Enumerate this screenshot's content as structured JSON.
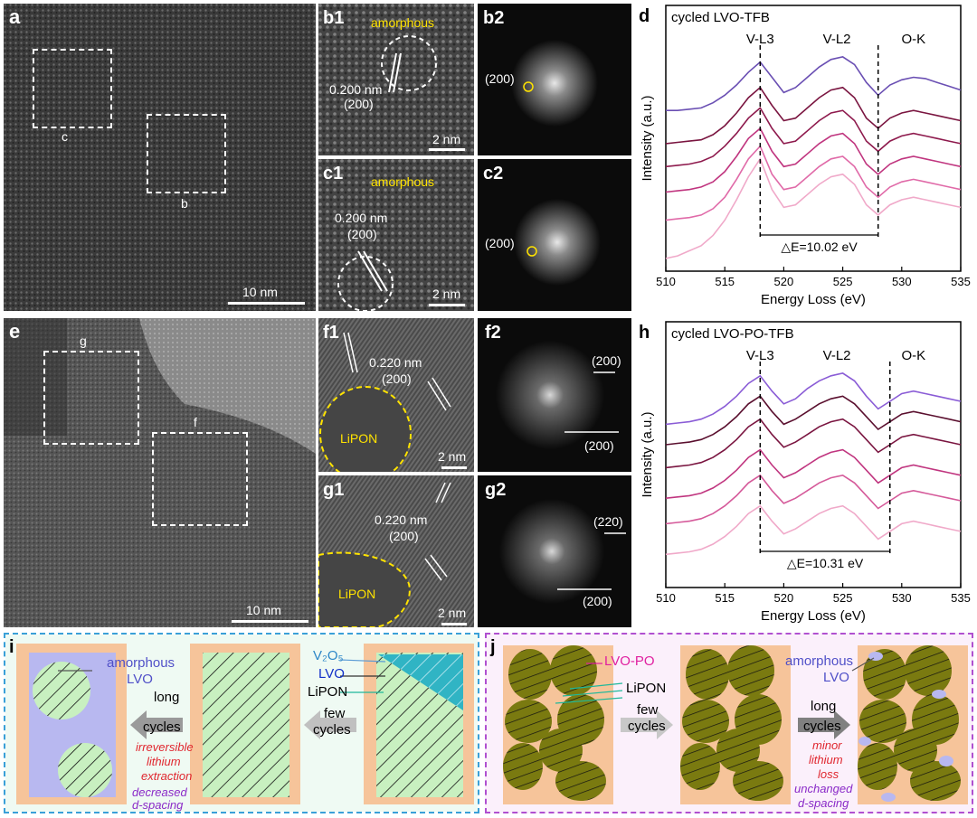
{
  "panels": {
    "a": {
      "label": "a",
      "regions": [
        "c",
        "b"
      ],
      "scale": "10 nm"
    },
    "b1": {
      "label": "b1",
      "phase": "amorphous",
      "d_spacing": "0.200 nm",
      "plane": "(200)",
      "scale": "2 nm"
    },
    "b2": {
      "label": "b2",
      "spot": "(200)"
    },
    "c1": {
      "label": "c1",
      "phase": "amorphous",
      "d_spacing": "0.200 nm",
      "plane": "(200)",
      "scale": "2 nm"
    },
    "c2": {
      "label": "c2",
      "spot": "(200)"
    },
    "e": {
      "label": "e",
      "regions": [
        "g",
        "f"
      ],
      "scale": "10 nm"
    },
    "f1": {
      "label": "f1",
      "d_spacing": "0.220 nm",
      "plane": "(200)",
      "phase": "LiPON",
      "scale": "2 nm"
    },
    "f2": {
      "label": "f2",
      "spots": [
        "(200)",
        "(200)"
      ]
    },
    "g1": {
      "label": "g1",
      "d_spacing": "0.220 nm",
      "plane": "(200)",
      "phase": "LiPON",
      "scale": "2 nm"
    },
    "g2": {
      "label": "g2",
      "spots": [
        "(220)",
        "(200)"
      ]
    }
  },
  "chart_data": [
    {
      "label": "d",
      "type": "line",
      "title": "cycled LVO-TFB",
      "xlabel": "Energy Loss (eV)",
      "ylabel": "Intensity (a.u.)",
      "xlim": [
        510,
        535
      ],
      "xticks": [
        "510",
        "515",
        "520",
        "525",
        "530",
        "535"
      ],
      "peaks": [
        "V-L3",
        "V-L2",
        "O-K"
      ],
      "annotation": "△E=10.02 eV",
      "dashed_lines_x": [
        518,
        528
      ],
      "colors": [
        "#6a4fb3",
        "#7a1540",
        "#8e1a4d",
        "#c0357f",
        "#e06aa8",
        "#f0a9c9"
      ],
      "series": [
        {
          "x": [
            510,
            511,
            512,
            513,
            514,
            515,
            516,
            517,
            518,
            519,
            520,
            521,
            522,
            523,
            524,
            525,
            526,
            527,
            528,
            529,
            530,
            531,
            532,
            533,
            534,
            535
          ],
          "values": [
            6.3,
            6.3,
            6.35,
            6.4,
            6.6,
            6.9,
            7.3,
            7.8,
            8.2,
            7.6,
            7.0,
            7.2,
            7.6,
            8.0,
            8.3,
            8.4,
            8.1,
            7.4,
            6.9,
            7.3,
            7.5,
            7.6,
            7.55,
            7.4,
            7.25,
            7.1
          ]
        },
        {
          "x": [
            510,
            511,
            512,
            513,
            514,
            515,
            516,
            517,
            518,
            519,
            520,
            521,
            522,
            523,
            524,
            525,
            526,
            527,
            528,
            529,
            530,
            531,
            532,
            533,
            534,
            535
          ],
          "values": [
            5.0,
            5.05,
            5.1,
            5.15,
            5.35,
            5.7,
            6.2,
            6.8,
            7.2,
            6.5,
            5.9,
            6.0,
            6.4,
            6.8,
            7.1,
            7.2,
            6.8,
            6.0,
            5.6,
            6.0,
            6.2,
            6.3,
            6.2,
            6.1,
            6.0,
            5.9
          ]
        },
        {
          "x": [
            510,
            511,
            512,
            513,
            514,
            515,
            516,
            517,
            518,
            519,
            520,
            521,
            522,
            523,
            524,
            525,
            526,
            527,
            528,
            529,
            530,
            531,
            532,
            533,
            534,
            535
          ],
          "values": [
            4.1,
            4.15,
            4.2,
            4.3,
            4.5,
            4.9,
            5.4,
            6.0,
            6.4,
            5.6,
            5.0,
            5.1,
            5.5,
            5.9,
            6.2,
            6.3,
            5.9,
            5.1,
            4.7,
            5.1,
            5.3,
            5.4,
            5.3,
            5.2,
            5.1,
            5.0
          ]
        },
        {
          "x": [
            510,
            511,
            512,
            513,
            514,
            515,
            516,
            517,
            518,
            519,
            520,
            521,
            522,
            523,
            524,
            525,
            526,
            527,
            528,
            529,
            530,
            531,
            532,
            533,
            534,
            535
          ],
          "values": [
            3.1,
            3.15,
            3.2,
            3.3,
            3.5,
            3.9,
            4.5,
            5.2,
            5.6,
            4.7,
            4.1,
            4.2,
            4.6,
            5.0,
            5.3,
            5.4,
            5.0,
            4.2,
            3.8,
            4.2,
            4.4,
            4.5,
            4.4,
            4.3,
            4.2,
            4.1
          ]
        },
        {
          "x": [
            510,
            511,
            512,
            513,
            514,
            515,
            516,
            517,
            518,
            519,
            520,
            521,
            522,
            523,
            524,
            525,
            526,
            527,
            528,
            529,
            530,
            531,
            532,
            533,
            534,
            535
          ],
          "values": [
            2.0,
            2.05,
            2.1,
            2.2,
            2.45,
            2.9,
            3.6,
            4.4,
            4.9,
            3.8,
            3.2,
            3.3,
            3.7,
            4.1,
            4.4,
            4.5,
            4.1,
            3.3,
            2.9,
            3.3,
            3.5,
            3.6,
            3.5,
            3.4,
            3.3,
            3.2
          ]
        },
        {
          "x": [
            510,
            511,
            512,
            513,
            514,
            515,
            516,
            517,
            518,
            519,
            520,
            521,
            522,
            523,
            524,
            525,
            526,
            527,
            528,
            529,
            530,
            531,
            532,
            533,
            534,
            535
          ],
          "values": [
            0.5,
            0.6,
            0.8,
            1.0,
            1.4,
            2.0,
            2.8,
            3.7,
            4.4,
            3.2,
            2.5,
            2.6,
            3.0,
            3.4,
            3.7,
            3.8,
            3.4,
            2.6,
            2.2,
            2.6,
            2.8,
            2.9,
            2.8,
            2.7,
            2.6,
            2.5
          ]
        }
      ]
    },
    {
      "label": "h",
      "type": "line",
      "title": "cycled LVO-PO-TFB",
      "xlabel": "Energy Loss (eV)",
      "ylabel": "Intensity (a.u.)",
      "xlim": [
        510,
        535
      ],
      "xticks": [
        "510",
        "515",
        "520",
        "525",
        "530",
        "535"
      ],
      "peaks": [
        "V-L3",
        "V-L2",
        "O-K"
      ],
      "annotation": "△E=10.31 eV",
      "dashed_lines_x": [
        518,
        529
      ],
      "colors": [
        "#8a5cd6",
        "#5a0f2e",
        "#7a1540",
        "#c0357f",
        "#d55a9a",
        "#f0a9c9"
      ],
      "series": [
        {
          "x": [
            510,
            511,
            512,
            513,
            514,
            515,
            516,
            517,
            518,
            519,
            520,
            521,
            522,
            523,
            524,
            525,
            526,
            527,
            528,
            529,
            530,
            531,
            532,
            533,
            534,
            535
          ],
          "values": [
            6.4,
            6.45,
            6.5,
            6.6,
            6.8,
            7.1,
            7.5,
            8.0,
            8.3,
            7.7,
            7.2,
            7.4,
            7.8,
            8.1,
            8.3,
            8.4,
            8.1,
            7.5,
            7.0,
            7.3,
            7.6,
            7.7,
            7.6,
            7.5,
            7.4,
            7.3
          ]
        },
        {
          "x": [
            510,
            511,
            512,
            513,
            514,
            515,
            516,
            517,
            518,
            519,
            520,
            521,
            522,
            523,
            524,
            525,
            526,
            527,
            528,
            529,
            530,
            531,
            532,
            533,
            534,
            535
          ],
          "values": [
            5.6,
            5.65,
            5.7,
            5.8,
            6.0,
            6.3,
            6.7,
            7.2,
            7.5,
            6.9,
            6.4,
            6.6,
            6.9,
            7.2,
            7.4,
            7.5,
            7.2,
            6.7,
            6.2,
            6.5,
            6.8,
            6.9,
            6.8,
            6.7,
            6.6,
            6.5
          ]
        },
        {
          "x": [
            510,
            511,
            512,
            513,
            514,
            515,
            516,
            517,
            518,
            519,
            520,
            521,
            522,
            523,
            524,
            525,
            526,
            527,
            528,
            529,
            530,
            531,
            532,
            533,
            534,
            535
          ],
          "values": [
            4.7,
            4.75,
            4.8,
            4.9,
            5.1,
            5.4,
            5.8,
            6.3,
            6.6,
            6.0,
            5.5,
            5.7,
            6.0,
            6.3,
            6.5,
            6.6,
            6.3,
            5.8,
            5.3,
            5.6,
            5.9,
            6.0,
            5.9,
            5.8,
            5.7,
            5.6
          ]
        },
        {
          "x": [
            510,
            511,
            512,
            513,
            514,
            515,
            516,
            517,
            518,
            519,
            520,
            521,
            522,
            523,
            524,
            525,
            526,
            527,
            528,
            529,
            530,
            531,
            532,
            533,
            534,
            535
          ],
          "values": [
            3.5,
            3.55,
            3.6,
            3.7,
            3.9,
            4.2,
            4.6,
            5.1,
            5.4,
            4.8,
            4.3,
            4.5,
            4.8,
            5.1,
            5.3,
            5.4,
            5.1,
            4.6,
            4.1,
            4.4,
            4.7,
            4.8,
            4.7,
            4.6,
            4.5,
            4.4
          ]
        },
        {
          "x": [
            510,
            511,
            512,
            513,
            514,
            515,
            516,
            517,
            518,
            519,
            520,
            521,
            522,
            523,
            524,
            525,
            526,
            527,
            528,
            529,
            530,
            531,
            532,
            533,
            534,
            535
          ],
          "values": [
            2.5,
            2.55,
            2.6,
            2.7,
            2.9,
            3.2,
            3.6,
            4.1,
            4.4,
            3.8,
            3.3,
            3.5,
            3.8,
            4.1,
            4.3,
            4.4,
            4.1,
            3.6,
            3.1,
            3.4,
            3.7,
            3.8,
            3.7,
            3.6,
            3.5,
            3.4
          ]
        },
        {
          "x": [
            510,
            511,
            512,
            513,
            514,
            515,
            516,
            517,
            518,
            519,
            520,
            521,
            522,
            523,
            524,
            525,
            526,
            527,
            528,
            529,
            530,
            531,
            532,
            533,
            534,
            535
          ],
          "values": [
            1.3,
            1.35,
            1.4,
            1.5,
            1.7,
            2.0,
            2.4,
            2.9,
            3.2,
            2.6,
            2.1,
            2.3,
            2.6,
            2.9,
            3.1,
            3.2,
            2.9,
            2.4,
            1.9,
            2.2,
            2.5,
            2.6,
            2.5,
            2.4,
            2.3,
            2.2
          ]
        }
      ]
    }
  ],
  "schematic_i": {
    "label": "i",
    "amorphous": "amorphous",
    "lvo": "LVO",
    "v2o5": "V₂O₅",
    "lvo_legend": "LVO",
    "lipon": "LiPON",
    "long": "long",
    "cycles": "cycles",
    "few": "few",
    "note1": "irreversible",
    "note2": "lithium",
    "note3": "extraction",
    "note4": "decreased",
    "note5": "d-spacing"
  },
  "schematic_j": {
    "label": "j",
    "lvo_po": "LVO-PO",
    "lipon": "LiPON",
    "few": "few",
    "cycles": "cycles",
    "long": "long",
    "amorphous": "amorphous",
    "lvo": "LVO",
    "note1": "minor",
    "note2": "lithium",
    "note3": "loss",
    "note4": "unchanged",
    "note5": "d-spacing"
  }
}
